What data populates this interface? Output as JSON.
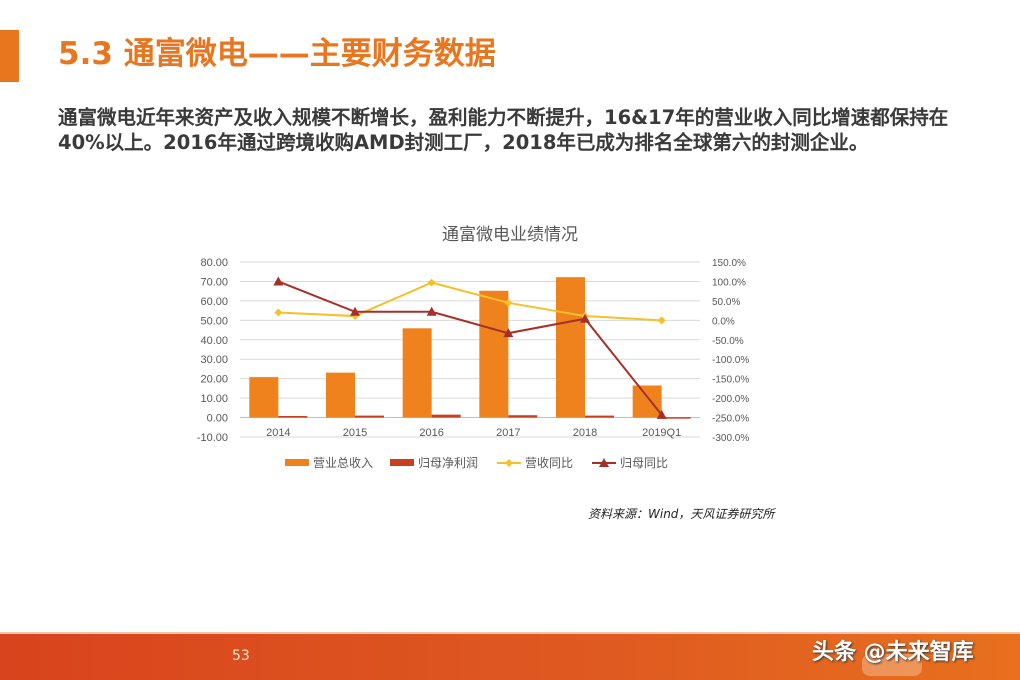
{
  "header": {
    "title": "5.3 通富微电——主要财务数据",
    "accent_color": "#e8761e"
  },
  "summary": {
    "text": "通富微电近年来资产及收入规模不断增长，盈利能力不断提升，16&17年的营业收入同比增速都保持在40%以上。2016年通过跨境收购AMD封测工厂，2018年已成为排名全球第六的封测企业。"
  },
  "chart_data": {
    "type": "bar",
    "title": "通富微电业绩情况",
    "categories": [
      "2014",
      "2015",
      "2016",
      "2017",
      "2018",
      "2019Q1"
    ],
    "series": [
      {
        "name": "营业总收入",
        "type": "bar",
        "axis": "left",
        "color": "#f0821e",
        "values": [
          20.8,
          23.1,
          45.9,
          65.2,
          72.2,
          16.5
        ]
      },
      {
        "name": "归母净利润",
        "type": "bar",
        "axis": "left",
        "color": "#c9401c",
        "values": [
          0.8,
          1.0,
          1.5,
          1.2,
          1.0,
          0.2
        ]
      },
      {
        "name": "营收同比",
        "type": "line",
        "axis": "right",
        "marker": "diamond",
        "color": "#f5c12a",
        "values": [
          20,
          11,
          97,
          45,
          11,
          0
        ]
      },
      {
        "name": "归母同比",
        "type": "line",
        "axis": "right",
        "marker": "triangle",
        "color": "#a5302a",
        "values": [
          100,
          22,
          22,
          -33,
          4,
          -243
        ]
      }
    ],
    "left_axis": {
      "ticks": [
        "80.00",
        "70.00",
        "60.00",
        "50.00",
        "40.00",
        "30.00",
        "20.00",
        "10.00",
        "0.00",
        "-10.00"
      ],
      "ylim": [
        -10,
        80
      ]
    },
    "right_axis": {
      "ticks": [
        "150.0%",
        "100.0%",
        "50.0%",
        "0.0%",
        "-50.0%",
        "-100.0%",
        "-150.0%",
        "-200.0%",
        "-250.0%",
        "-300.0%"
      ],
      "ylim": [
        -300,
        150
      ]
    },
    "grid": true,
    "legend_position": "bottom"
  },
  "source": {
    "text": "资料来源：Wind，天风证券研究所"
  },
  "footer": {
    "page_number": "53",
    "watermark": "头条 @未来智库"
  }
}
